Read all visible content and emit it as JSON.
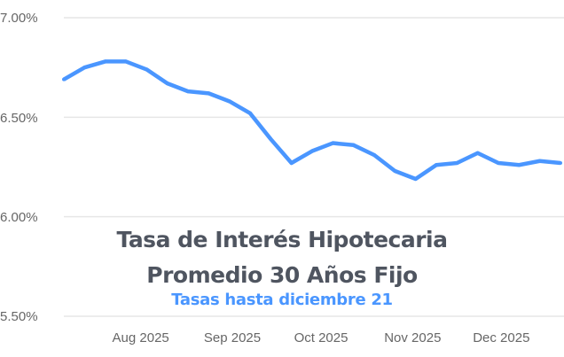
{
  "chart_data": {
    "type": "line",
    "title": "Tasa de Interés Hipotecaria",
    "title_line2": "Promedio 30 Años Fijo",
    "subtitle": "Tasas hasta diciembre 21",
    "xlabel": "",
    "ylabel": "",
    "ylim": [
      5.5,
      7.0
    ],
    "xlim": [
      "2025-07-06",
      "2025-12-21"
    ],
    "grid": true,
    "y_ticks": [
      "7.00%",
      "6.50%",
      "6.00%",
      "5.50%"
    ],
    "y_tick_values": [
      7.0,
      6.5,
      6.0,
      5.5
    ],
    "x_ticks": [
      "Aug 2025",
      "Sep 2025",
      "Oct 2025",
      "Nov 2025",
      "Dec 2025"
    ],
    "x_tick_dates": [
      "2025-08-01",
      "2025-09-01",
      "2025-10-01",
      "2025-11-01",
      "2025-12-01"
    ],
    "line_color": "#4a96ff",
    "x": [
      "2025-07-06",
      "2025-07-13",
      "2025-07-20",
      "2025-07-27",
      "2025-08-03",
      "2025-08-10",
      "2025-08-17",
      "2025-08-24",
      "2025-08-31",
      "2025-09-07",
      "2025-09-14",
      "2025-09-21",
      "2025-09-28",
      "2025-10-05",
      "2025-10-12",
      "2025-10-19",
      "2025-10-26",
      "2025-11-02",
      "2025-11-09",
      "2025-11-16",
      "2025-11-23",
      "2025-11-30",
      "2025-12-07",
      "2025-12-14",
      "2025-12-21"
    ],
    "values": [
      6.69,
      6.75,
      6.78,
      6.78,
      6.74,
      6.67,
      6.63,
      6.62,
      6.58,
      6.52,
      6.39,
      6.27,
      6.33,
      6.37,
      6.36,
      6.31,
      6.23,
      6.19,
      6.26,
      6.27,
      6.32,
      6.27,
      6.26,
      6.28,
      6.27
    ]
  }
}
